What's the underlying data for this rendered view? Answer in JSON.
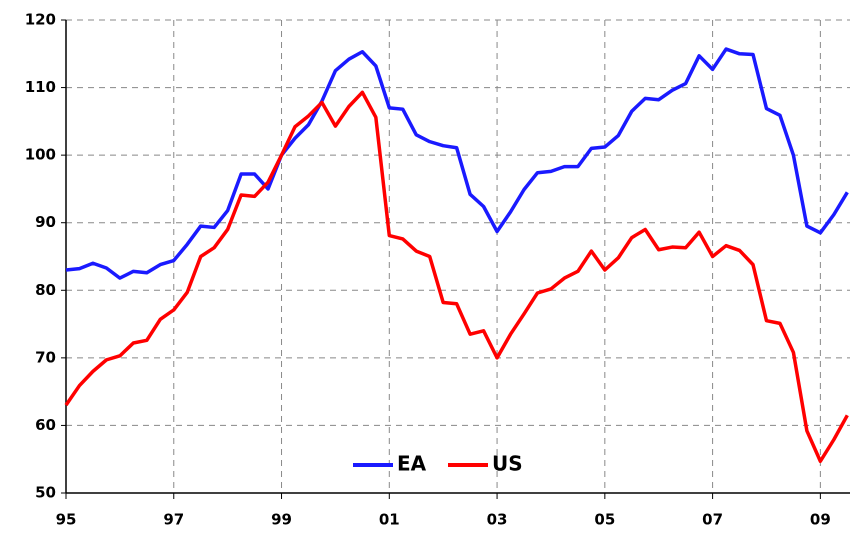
{
  "chart_data": {
    "type": "line",
    "x": [
      1995,
      1995.25,
      1995.5,
      1995.75,
      1996,
      1996.25,
      1996.5,
      1996.75,
      1997,
      1997.25,
      1997.5,
      1997.75,
      1998,
      1998.25,
      1998.5,
      1998.75,
      1999,
      1999.25,
      1999.5,
      1999.75,
      2000,
      2000.25,
      2000.5,
      2000.75,
      2001,
      2001.25,
      2001.5,
      2001.75,
      2002,
      2002.25,
      2002.5,
      2002.75,
      2003,
      2003.25,
      2003.5,
      2003.75,
      2004,
      2004.25,
      2004.5,
      2004.75,
      2005,
      2005.25,
      2005.5,
      2005.75,
      2006,
      2006.25,
      2006.5,
      2006.75,
      2007,
      2007.25,
      2007.5,
      2007.75,
      2008,
      2008.25,
      2008.5,
      2008.75,
      2009,
      2009.25,
      2009.5
    ],
    "series": [
      {
        "name": "EA",
        "color": "#1a1aff",
        "values": [
          83,
          83.2,
          84,
          83.3,
          81.8,
          82.8,
          82.6,
          83.8,
          84.4,
          86.8,
          89.5,
          89.3,
          91.8,
          97.2,
          97.2,
          95,
          100,
          102.5,
          104.5,
          108,
          112.5,
          114.2,
          115.3,
          113.2,
          107,
          106.8,
          103,
          102,
          101.4,
          101.1,
          94.2,
          92.4,
          88.7,
          91.6,
          94.9,
          97.4,
          97.6,
          98.3,
          98.3,
          101,
          101.2,
          102.9,
          106.5,
          108.4,
          108.2,
          109.6,
          110.6,
          114.7,
          112.7,
          115.7,
          115,
          114.9,
          106.9,
          105.9,
          100,
          89.5,
          88.5,
          91.2,
          94.5
        ]
      },
      {
        "name": "US",
        "color": "#ff0000",
        "values": [
          63,
          65.9,
          68,
          69.7,
          70.3,
          72.2,
          72.6,
          75.7,
          77.1,
          79.7,
          85,
          86.3,
          89,
          94.1,
          93.9,
          96,
          100,
          104.2,
          105.8,
          107.8,
          104.3,
          107.2,
          109.3,
          105.6,
          88.1,
          87.6,
          85.8,
          85,
          78.2,
          78,
          73.5,
          74,
          70,
          73.5,
          76.5,
          79.6,
          80.2,
          81.8,
          82.8,
          85.8,
          83,
          84.8,
          87.8,
          89,
          86,
          86.4,
          86.3,
          88.6,
          85,
          86.6,
          85.9,
          83.8,
          75.5,
          75.1,
          70.8,
          59.2,
          54.7,
          57.9,
          61.5
        ]
      }
    ],
    "xlim": [
      1995,
      2009.55
    ],
    "xticks": [
      {
        "value": 1995,
        "label": "95"
      },
      {
        "value": 1997,
        "label": "97"
      },
      {
        "value": 1999,
        "label": "99"
      },
      {
        "value": 2001,
        "label": "01"
      },
      {
        "value": 2003,
        "label": "03"
      },
      {
        "value": 2005,
        "label": "05"
      },
      {
        "value": 2007,
        "label": "07"
      },
      {
        "value": 2009,
        "label": "09"
      }
    ],
    "ylim": [
      50,
      120
    ],
    "yticks": [
      50,
      60,
      70,
      80,
      90,
      100,
      110,
      120
    ],
    "grid": true,
    "legend": "lower center"
  }
}
